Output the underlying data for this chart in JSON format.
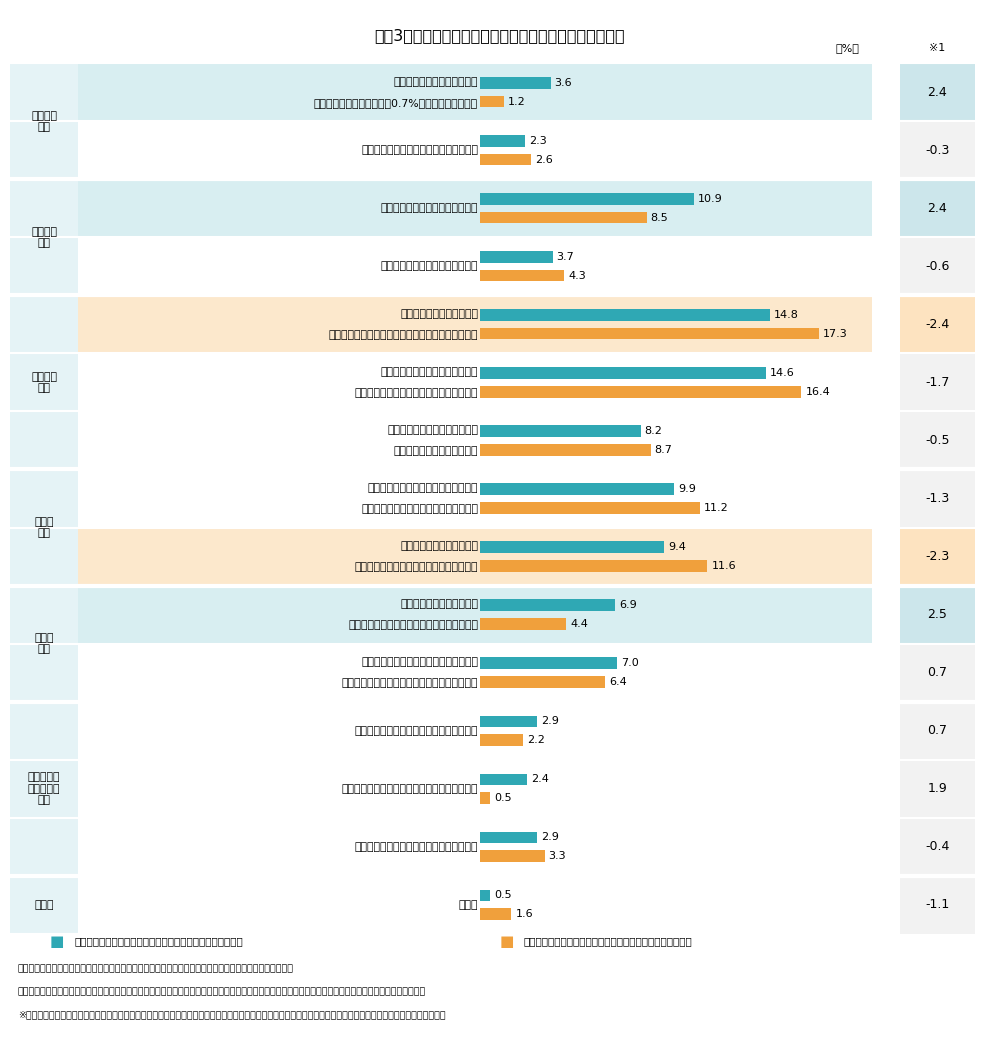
{
  "title": "図表3　住宅ローンの繰上返済をした理由（複数回答可）",
  "categories": [
    [
      "「住宅ローン金利」よりも、",
      "「住宅ローン控除率（現在0.7%）」が低かったから"
    ],
    [
      "住宅ローン金利の上昇が懸念されたから",
      ""
    ],
    [
      "家計の剰余が一定程度生じたから",
      ""
    ],
    [
      "相続などで臨時収入があったから",
      ""
    ],
    [
      "元本をできるだけ減らし、",
      "残債にかかる利息をできるだけ減らしたかったから"
    ],
    [
      "元本をできるだけ早めに減らし、",
      "返済期間をできるだけ短縮したかったから"
    ],
    [
      "当初の返済スケジュールよりも",
      "効率的に減らしたかったから"
    ],
    [
      "「住宅ローン」による心理的負担から",
      "できるだけ早めに解放されたかったから"
    ],
    [
      "できるだけ早めに完済し、",
      "住宅を自身の完全所有物にしたかったから"
    ],
    [
      "できるだけ早めに完済し、",
      "資産運用に充てる資金を増やしたかったから"
    ],
    [
      "できるだけ早めに完済し、将来の融資や",
      "金融取引において有利な条件を得たかったから"
    ],
    [
      "金融機関の担当者にアドバイスされたから",
      ""
    ],
    [
      "住宅販売会社の担当者にアドバイスされたから",
      ""
    ],
    [
      "知人・友人、家族にアドバイスされたから",
      ""
    ],
    [
      "その他",
      ""
    ]
  ],
  "teal_values": [
    3.6,
    2.3,
    10.9,
    3.7,
    14.8,
    14.6,
    8.2,
    9.9,
    9.4,
    6.9,
    7.0,
    2.9,
    2.4,
    2.9,
    0.5
  ],
  "orange_values": [
    1.2,
    2.6,
    8.5,
    4.3,
    17.3,
    16.4,
    8.7,
    11.2,
    11.6,
    4.4,
    6.4,
    2.2,
    0.5,
    3.3,
    1.6
  ],
  "diff_values": [
    2.4,
    -0.3,
    2.4,
    -0.6,
    -2.4,
    -1.7,
    -0.5,
    -1.3,
    -2.3,
    2.5,
    0.7,
    0.7,
    1.9,
    -0.4,
    -1.1
  ],
  "group_data": [
    [
      "外部環境\n起点",
      0,
      1
    ],
    [
      "返済原資\n起点",
      2,
      3
    ],
    [
      "早期返済\n起点",
      4,
      6
    ],
    [
      "心理的\n起点",
      7,
      8
    ],
    [
      "他目的\n起点",
      9,
      10
    ],
    [
      "他者からの\nアドバイス\n起点",
      11,
      13
    ],
    [
      "その他",
      14,
      14
    ]
  ],
  "row_highlight_bg": [
    "#d8eef1",
    "none",
    "#d8eef1",
    "none",
    "#fce8cc",
    "none",
    "none",
    "none",
    "#fce8cc",
    "#d8eef1",
    "none",
    "none",
    "none",
    "none",
    "none"
  ],
  "diff_highlight_bg": [
    "#cce6eb",
    "none",
    "#cce6eb",
    "none",
    "#fde3c0",
    "none",
    "none",
    "none",
    "#fde3c0",
    "#cce6eb",
    "none",
    "none",
    "none",
    "none",
    "none"
  ],
  "teal_color": "#2fa8b4",
  "orange_color": "#f0a03c",
  "group_col_bg": "#e5f3f6",
  "default_diff_bg": "#f2f2f2",
  "border_color": "#ffffff",
  "legend_teal": "繰上返済経験ありかつ将来の生活設計・資金計画の検討あり",
  "legend_orange": "繰上返済経験ありかつ将来の生活設計・資金計画の検討なし",
  "note1": "＊回答者：住宅ローン繰上返済利用経験者　＊それぞれの回答総数に対する各選択肢回答数の割合にて算出",
  "note2": "＊回答者数：＜繰上返済経験ありかつ将来の生活設計・資金計画の検討あり＞５９９、＜繰上返済経験ありかつ将来の生活設計・資金計画の検討なし＞６２５",
  "note3": "※１［（繰上返済経験あり）かつ（将来の生活設計・資金計画の検討あり）］－［（繰上返済経験あり）かつ（将来の生活設計・資金計画の検討なし）］の値を掲載",
  "max_bar_val": 20.0
}
